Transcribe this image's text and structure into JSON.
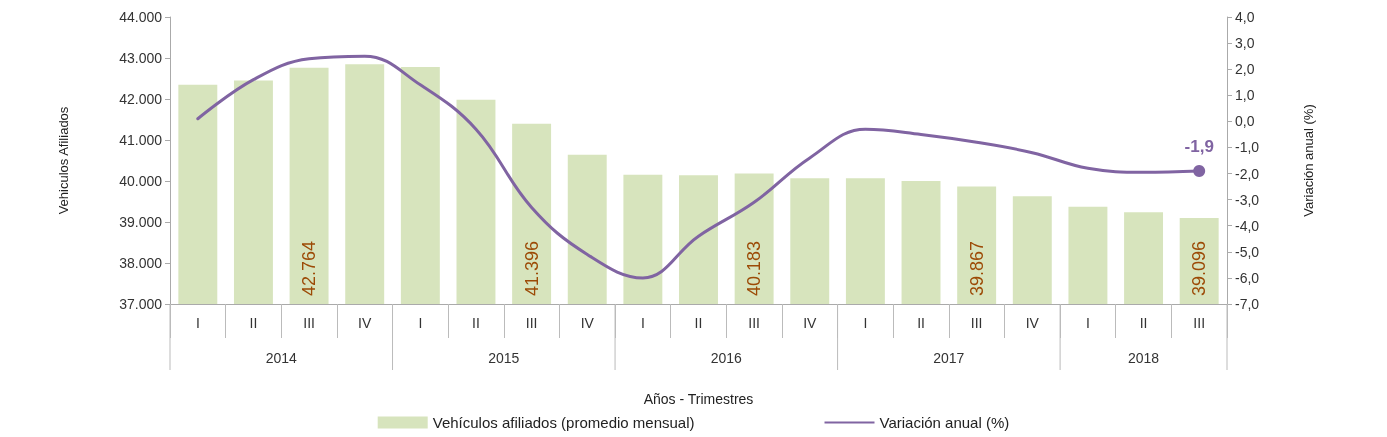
{
  "chart_data": {
    "type": "bar",
    "xlabel": "Años - Trimestres",
    "ylabel": "Vehiculos Afiliados",
    "y2label": "Variación anual (%)",
    "categories": [
      "I",
      "II",
      "III",
      "IV",
      "I",
      "II",
      "III",
      "IV",
      "I",
      "II",
      "III",
      "IV",
      "I",
      "II",
      "III",
      "IV",
      "I",
      "II",
      "III"
    ],
    "annotations": [
      "2014",
      "2015",
      "2016",
      "2017",
      "2018"
    ],
    "series": [
      {
        "name": "Vehículos afiliados (promedio mensual)",
        "color": "#d7e4bd",
        "values": [
          42350,
          42450,
          42764,
          42850,
          42780,
          41980,
          41396,
          40640,
          40150,
          40140,
          40183,
          40070,
          40070,
          40000,
          39867,
          39630,
          39370,
          39240,
          39096
        ],
        "value_labels": [
          null,
          null,
          "42.764",
          null,
          null,
          null,
          "41.396",
          null,
          null,
          null,
          "40.183",
          null,
          null,
          null,
          "39.867",
          null,
          null,
          null,
          "39.096"
        ]
      },
      {
        "name": "Variación anual (%)",
        "type": "line",
        "axis": "y2",
        "color": "#8064a2",
        "values": [
          0.1,
          1.6,
          2.4,
          2.5,
          1.4,
          -0.3,
          -3.3,
          -5.1,
          -6.0,
          -4.4,
          -3.1,
          -1.4,
          -0.3,
          -0.5,
          -0.8,
          -1.2,
          -1.8,
          -1.95,
          -1.9
        ],
        "value_labels": [
          null,
          null,
          null,
          null,
          null,
          null,
          null,
          null,
          null,
          null,
          null,
          null,
          null,
          null,
          null,
          null,
          null,
          null,
          "-1,9"
        ]
      }
    ],
    "ylim": [
      37000,
      44000
    ],
    "yticks": [
      {
        "value": 37000,
        "label": "37.000"
      },
      {
        "value": 38000,
        "label": "38.000"
      },
      {
        "value": 39000,
        "label": "39.000"
      },
      {
        "value": 40000,
        "label": "40.000"
      },
      {
        "value": 41000,
        "label": "41.000"
      },
      {
        "value": 42000,
        "label": "42.000"
      },
      {
        "value": 43000,
        "label": "43.000"
      },
      {
        "value": 44000,
        "label": "44.000"
      }
    ],
    "y2lim": [
      -7,
      4
    ],
    "y2ticks": [
      {
        "value": -7,
        "label": "-7,0"
      },
      {
        "value": -6,
        "label": "-6,0"
      },
      {
        "value": -5,
        "label": "-5,0"
      },
      {
        "value": -4,
        "label": "-4,0"
      },
      {
        "value": -3,
        "label": "-3,0"
      },
      {
        "value": -2,
        "label": "-2,0"
      },
      {
        "value": -1,
        "label": "-1,0"
      },
      {
        "value": 0,
        "label": "0,0"
      },
      {
        "value": 1,
        "label": "1,0"
      },
      {
        "value": 2,
        "label": "2,0"
      },
      {
        "value": 3,
        "label": "3,0"
      },
      {
        "value": 4,
        "label": "4,0"
      }
    ],
    "grid": false,
    "legend": "bottom"
  }
}
